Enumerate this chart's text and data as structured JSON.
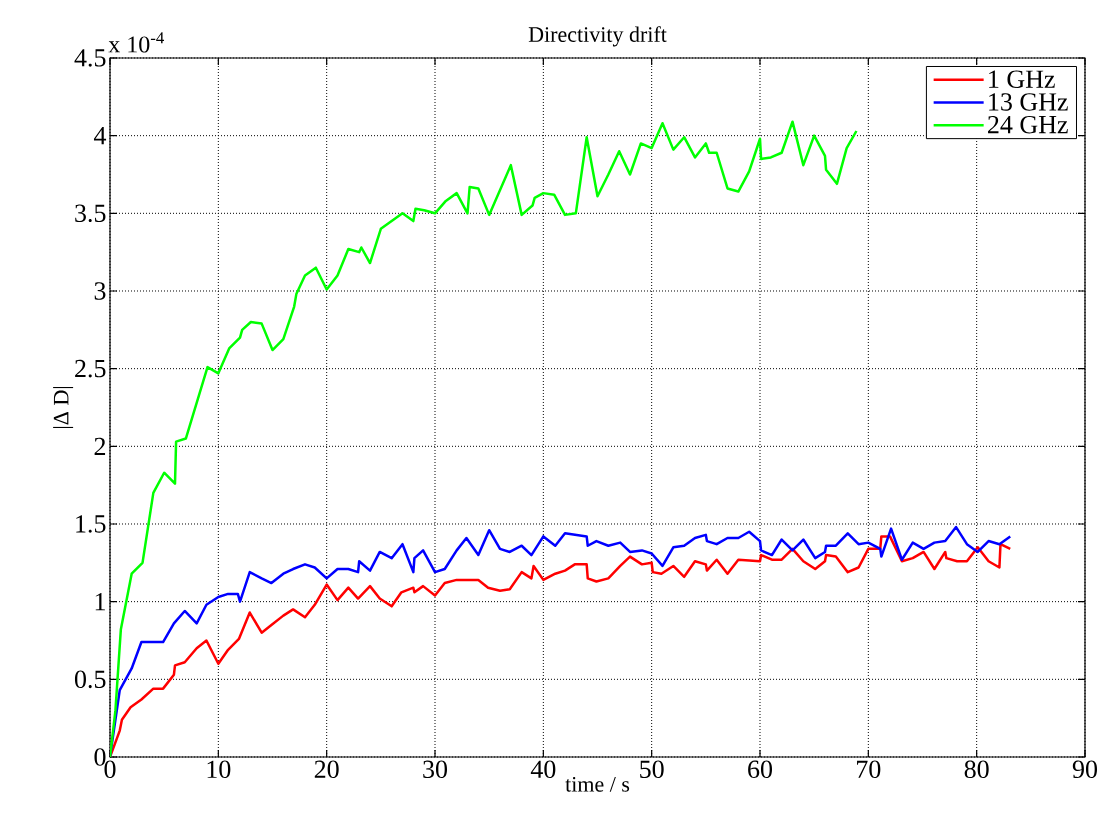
{
  "chart_data": {
    "type": "line",
    "title": "Directivity drift",
    "xlabel": "time / s",
    "ylabel": "|Δ D|",
    "annotations": [
      "x 10$^{-4}$"
    ],
    "xlim": [
      0,
      90
    ],
    "ylim": [
      0,
      4.5
    ],
    "xticks": [
      0,
      10,
      20,
      30,
      40,
      50,
      60,
      70,
      80,
      90
    ],
    "yticks": [
      0,
      0.5,
      1,
      1.5,
      2,
      2.5,
      3,
      3.5,
      4,
      4.5
    ],
    "grid": true,
    "legend": "top right",
    "series": [
      {
        "name": "1 GHz",
        "color": "#ff0000",
        "x": [
          0,
          0.9,
          1.1,
          1.9,
          2.9,
          4,
          4.9,
          5.9,
          6,
          6.9,
          8,
          8.9,
          10,
          10.9,
          11.9,
          12.9,
          14,
          14.9,
          16,
          16.9,
          18,
          18.9,
          20,
          21,
          22,
          22.9,
          24,
          24.9,
          26,
          26.9,
          28,
          28.1,
          28.9,
          30,
          30.9,
          32,
          34,
          34.9,
          36,
          36.9,
          38,
          38.9,
          39.1,
          40,
          41.1,
          42,
          42.9,
          44,
          44.1,
          44.9,
          46,
          47.1,
          48,
          49.1,
          50,
          50.1,
          50.9,
          52,
          53,
          54,
          55,
          55.1,
          56,
          57,
          58,
          60,
          60.1,
          61.1,
          62,
          63,
          64,
          65.1,
          66,
          66.1,
          67,
          68.1,
          69.1,
          70,
          71.1,
          71.2,
          72,
          73.1,
          74.1,
          75.1,
          76.1,
          77.1,
          77.2,
          78.2,
          79.1,
          80.1,
          81.1,
          82.1,
          82.2,
          83.1
        ],
        "values": [
          0,
          0.17,
          0.24,
          0.32,
          0.37,
          0.44,
          0.44,
          0.53,
          0.59,
          0.61,
          0.7,
          0.75,
          0.6,
          0.69,
          0.76,
          0.93,
          0.8,
          0.85,
          0.91,
          0.95,
          0.9,
          0.98,
          1.11,
          1.01,
          1.09,
          1.02,
          1.1,
          1.02,
          0.97,
          1.06,
          1.09,
          1.06,
          1.1,
          1.04,
          1.12,
          1.14,
          1.14,
          1.09,
          1.07,
          1.08,
          1.19,
          1.15,
          1.23,
          1.14,
          1.18,
          1.2,
          1.24,
          1.24,
          1.15,
          1.13,
          1.15,
          1.23,
          1.29,
          1.24,
          1.25,
          1.19,
          1.18,
          1.23,
          1.16,
          1.26,
          1.24,
          1.2,
          1.27,
          1.18,
          1.27,
          1.26,
          1.3,
          1.27,
          1.27,
          1.34,
          1.26,
          1.21,
          1.26,
          1.3,
          1.29,
          1.19,
          1.22,
          1.34,
          1.34,
          1.42,
          1.42,
          1.26,
          1.28,
          1.32,
          1.21,
          1.32,
          1.28,
          1.26,
          1.26,
          1.35,
          1.26,
          1.22,
          1.37,
          1.34
        ]
      },
      {
        "name": "13 GHz",
        "color": "#0000ff",
        "x": [
          0,
          0.9,
          2,
          2.9,
          4.9,
          5.9,
          6.9,
          8,
          8.9,
          10,
          10.9,
          11.8,
          12,
          12.9,
          14,
          14.9,
          16,
          16.9,
          18,
          18.9,
          20,
          21,
          22,
          22.9,
          23,
          24,
          24.9,
          26,
          27,
          28,
          28.1,
          28.9,
          30,
          30.9,
          32,
          32.9,
          34,
          35,
          36,
          36.9,
          38,
          38.9,
          40,
          41.1,
          42,
          44,
          44.1,
          44.9,
          46,
          47.1,
          48,
          49.1,
          50,
          51,
          52,
          53,
          54,
          55,
          55.1,
          56,
          57,
          58,
          59,
          60,
          60.1,
          61.1,
          62,
          63,
          64,
          65.1,
          66,
          66.1,
          67,
          68.1,
          69.1,
          70,
          71.1,
          71.2,
          72.1,
          73.1,
          74.1,
          75.1,
          76.1,
          77.1,
          78.1,
          79.1,
          80.1,
          81.1,
          82.1,
          83.1
        ],
        "values": [
          0,
          0.43,
          0.57,
          0.74,
          0.74,
          0.86,
          0.94,
          0.86,
          0.98,
          1.03,
          1.05,
          1.05,
          1.0,
          1.19,
          1.15,
          1.12,
          1.18,
          1.21,
          1.24,
          1.22,
          1.15,
          1.21,
          1.21,
          1.19,
          1.26,
          1.2,
          1.32,
          1.28,
          1.37,
          1.19,
          1.28,
          1.33,
          1.19,
          1.21,
          1.33,
          1.41,
          1.3,
          1.46,
          1.34,
          1.32,
          1.36,
          1.3,
          1.42,
          1.36,
          1.44,
          1.42,
          1.36,
          1.39,
          1.36,
          1.38,
          1.32,
          1.33,
          1.31,
          1.23,
          1.35,
          1.36,
          1.41,
          1.43,
          1.39,
          1.37,
          1.41,
          1.41,
          1.45,
          1.39,
          1.33,
          1.3,
          1.4,
          1.33,
          1.4,
          1.28,
          1.32,
          1.36,
          1.36,
          1.44,
          1.37,
          1.38,
          1.34,
          1.29,
          1.47,
          1.27,
          1.38,
          1.34,
          1.38,
          1.39,
          1.48,
          1.37,
          1.32,
          1.39,
          1.37,
          1.42
        ]
      },
      {
        "name": "24 GHz",
        "color": "#00ff00",
        "x": [
          0,
          0.5,
          1,
          2,
          3,
          4,
          5,
          6,
          6.1,
          7,
          8,
          9,
          10,
          11,
          12,
          12.2,
          13,
          14,
          15,
          16,
          17,
          17.2,
          18,
          19,
          20,
          21,
          22,
          23,
          23.2,
          24,
          25,
          27,
          28,
          28.2,
          29,
          30,
          31,
          32,
          33,
          33.2,
          34,
          35,
          37,
          38,
          39,
          39.2,
          40,
          41,
          42,
          43,
          44,
          45,
          46,
          47,
          48,
          49,
          50,
          51,
          52,
          53,
          54,
          55,
          55.3,
          56,
          57,
          58,
          59,
          60,
          60.1,
          61,
          62,
          63,
          64,
          65,
          66,
          66.1,
          67.1,
          68,
          68.9
        ],
        "values": [
          0,
          0.3,
          0.82,
          1.18,
          1.25,
          1.7,
          1.83,
          1.76,
          2.03,
          2.05,
          2.28,
          2.51,
          2.47,
          2.63,
          2.7,
          2.75,
          2.8,
          2.79,
          2.62,
          2.69,
          2.9,
          2.98,
          3.1,
          3.15,
          3.01,
          3.1,
          3.27,
          3.25,
          3.28,
          3.18,
          3.4,
          3.5,
          3.45,
          3.53,
          3.52,
          3.5,
          3.58,
          3.63,
          3.5,
          3.67,
          3.66,
          3.49,
          3.81,
          3.49,
          3.55,
          3.6,
          3.63,
          3.62,
          3.49,
          3.5,
          3.99,
          3.61,
          3.75,
          3.9,
          3.75,
          3.95,
          3.92,
          4.08,
          3.91,
          3.99,
          3.86,
          3.95,
          3.89,
          3.89,
          3.66,
          3.64,
          3.77,
          3.98,
          3.85,
          3.86,
          3.89,
          4.09,
          3.81,
          4.0,
          3.87,
          3.78,
          3.69,
          3.92,
          4.03
        ]
      }
    ]
  }
}
